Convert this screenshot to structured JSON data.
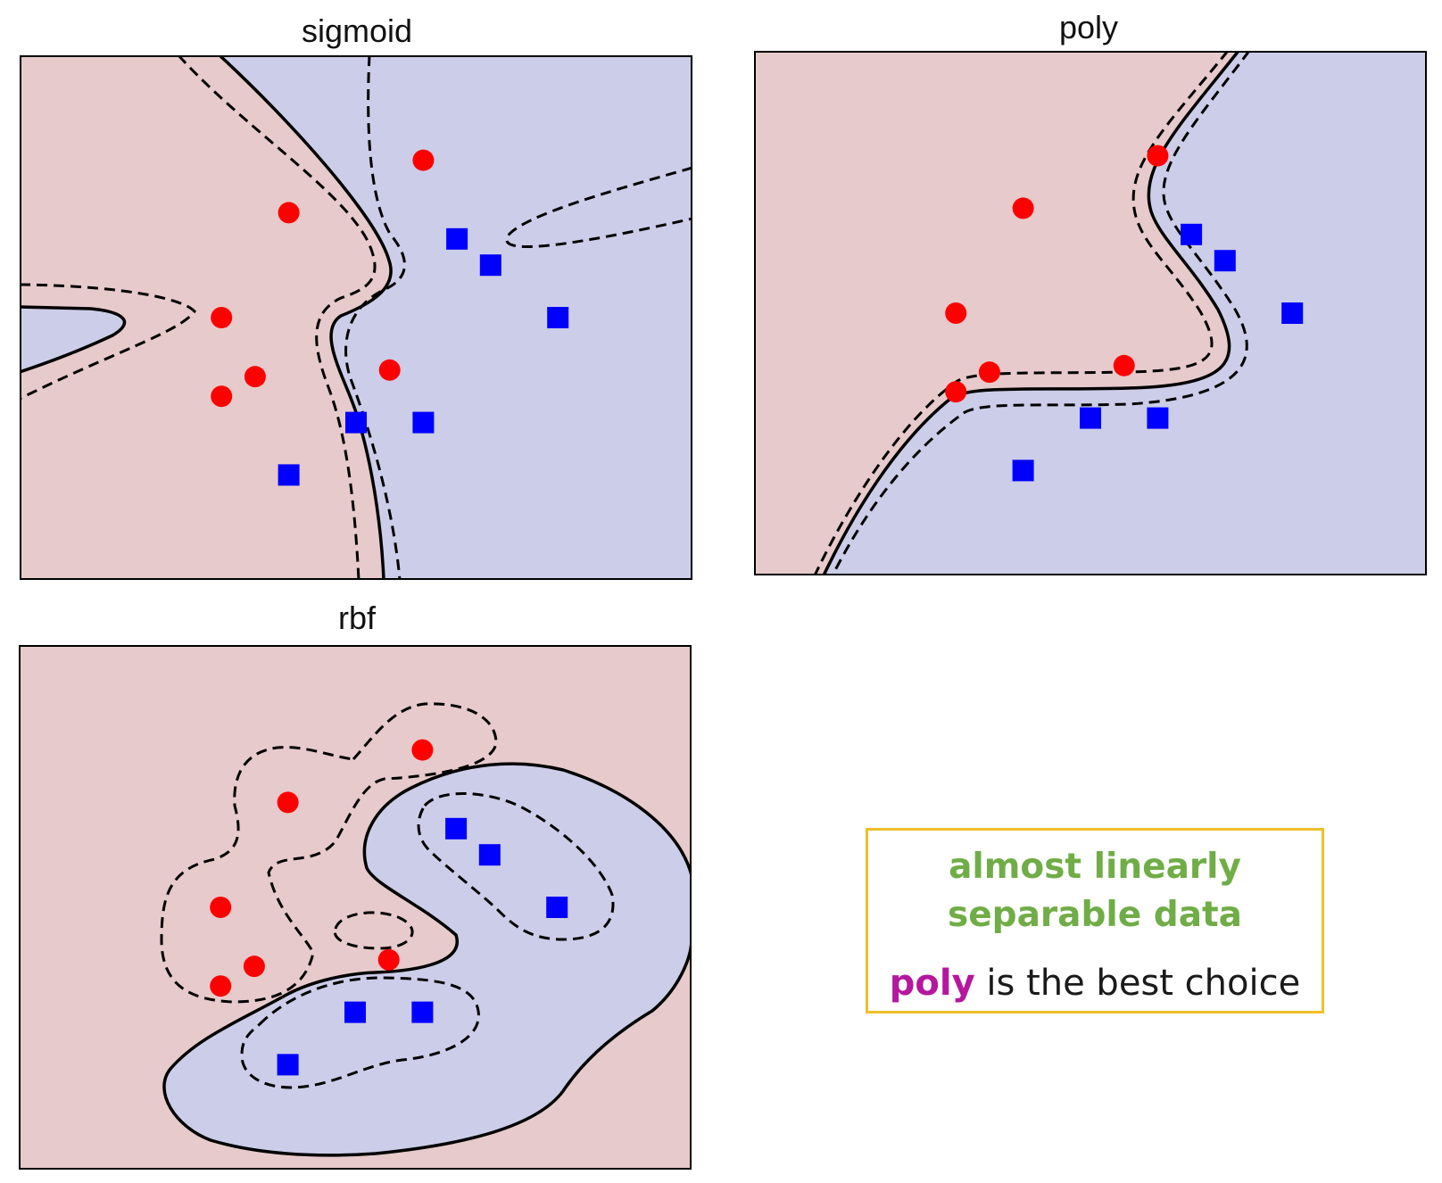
{
  "colors": {
    "class_a_region": "#e7cacb",
    "class_b_region": "#cccde8",
    "class_a_marker": "#ff0000",
    "class_b_marker": "#0000ff",
    "boundary": "#000000",
    "callout_border": "#f0bf2a",
    "callout_heading": "#70ad47",
    "callout_keyword": "#b5179e"
  },
  "chart_data": [
    {
      "type": "scatter",
      "title": "sigmoid",
      "xlim": [
        0,
        10
      ],
      "ylim": [
        0,
        8
      ],
      "grid": false,
      "series": [
        {
          "marker": "circle",
          "x": [
            6,
            4,
            3,
            3,
            3.5,
            5.5
          ],
          "y": [
            6.4,
            5.6,
            4,
            2.8,
            3.1,
            3.2
          ]
        },
        {
          "marker": "square",
          "x": [
            6.5,
            7,
            8,
            5,
            6,
            4
          ],
          "y": [
            5.2,
            4.8,
            4,
            2.4,
            2.4,
            1.6
          ]
        }
      ]
    },
    {
      "type": "scatter",
      "title": "poly",
      "xlim": [
        0,
        10
      ],
      "ylim": [
        0,
        8
      ],
      "grid": false,
      "series": [
        {
          "marker": "circle",
          "x": [
            6,
            4,
            3,
            3,
            3.5,
            5.5
          ],
          "y": [
            6.4,
            5.6,
            4,
            2.8,
            3.1,
            3.2
          ]
        },
        {
          "marker": "square",
          "x": [
            6.5,
            7,
            8,
            5,
            6,
            4
          ],
          "y": [
            5.2,
            4.8,
            4,
            2.4,
            2.4,
            1.6
          ]
        }
      ]
    },
    {
      "type": "scatter",
      "title": "rbf",
      "xlim": [
        0,
        10
      ],
      "ylim": [
        0,
        8
      ],
      "grid": false,
      "series": [
        {
          "marker": "circle",
          "x": [
            6,
            4,
            3,
            3,
            3.5,
            5.5
          ],
          "y": [
            6.4,
            5.6,
            4,
            2.8,
            3.1,
            3.2
          ]
        },
        {
          "marker": "square",
          "x": [
            6.5,
            7,
            8,
            5,
            6,
            4
          ],
          "y": [
            5.2,
            4.8,
            4,
            2.4,
            2.4,
            1.6
          ]
        }
      ]
    }
  ],
  "callout": {
    "heading": "almost linearly separable data",
    "keyword": "poly",
    "verdict_rest": " is the best choice"
  }
}
